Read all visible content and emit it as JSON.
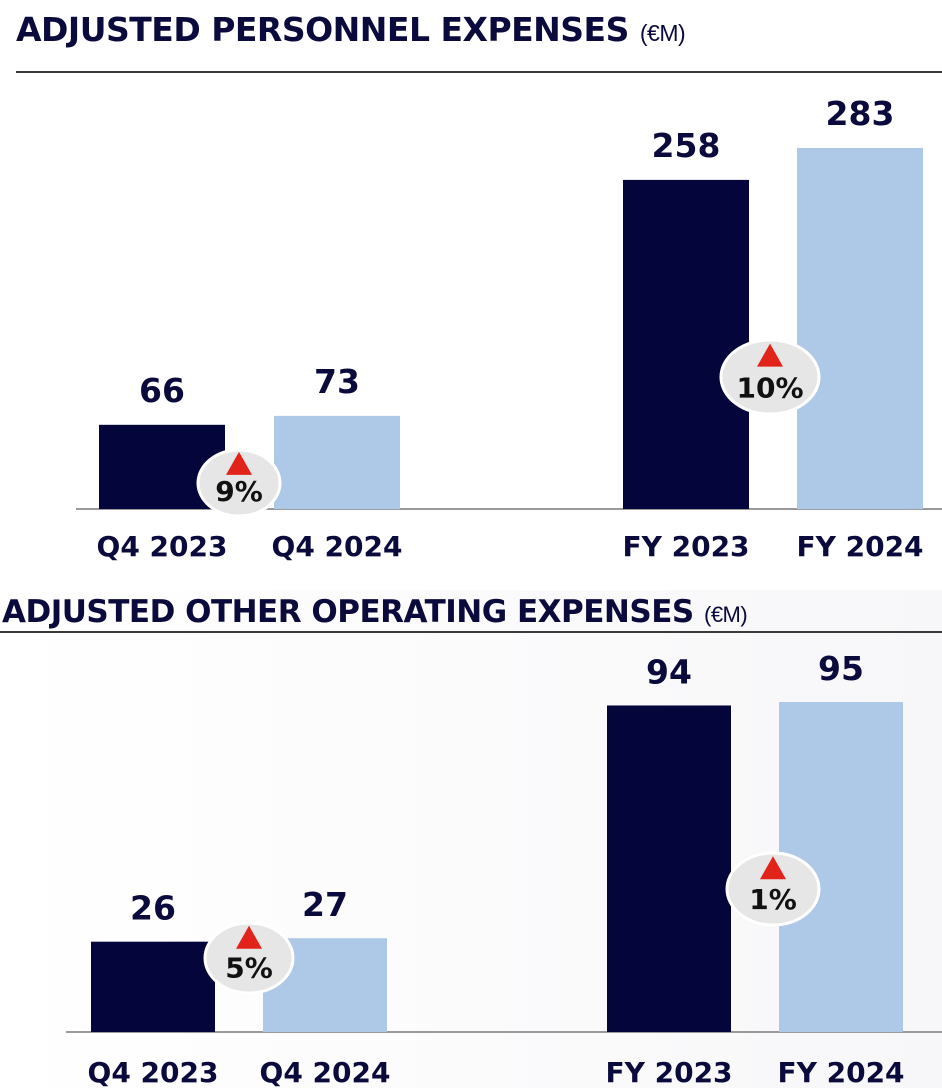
{
  "colors": {
    "fy_prev": "#03053b",
    "fy_curr": "#aec8e8",
    "axis": "#9a9a9a",
    "text": "#0a0a3c",
    "arrow": "#e2231a",
    "badge": "#e6e6e6"
  },
  "chart_data": [
    {
      "type": "bar",
      "title": "ADJUSTED PERSONNEL EXPENSES",
      "unit": "(€M)",
      "categories": [
        "Q4 2023",
        "Q4 2024",
        "FY 2023",
        "FY 2024"
      ],
      "values": [
        66,
        73,
        258,
        283
      ],
      "data_labels": [
        "66",
        "73",
        "258",
        "283"
      ],
      "changes": [
        {
          "label": "9%",
          "direction": "up",
          "from": "Q4 2023",
          "to": "Q4 2024"
        },
        {
          "label": "10%",
          "direction": "up",
          "from": "FY 2023",
          "to": "FY 2024"
        }
      ],
      "ylim": [
        0,
        283
      ]
    },
    {
      "type": "bar",
      "title": "ADJUSTED OTHER OPERATING EXPENSES",
      "unit": "(€M)",
      "categories": [
        "Q4 2023",
        "Q4 2024",
        "FY 2023",
        "FY 2024"
      ],
      "values": [
        26,
        27,
        94,
        95
      ],
      "data_labels": [
        "26",
        "27",
        "94",
        "95"
      ],
      "changes": [
        {
          "label": "5%",
          "direction": "up",
          "from": "Q4 2023",
          "to": "Q4 2024"
        },
        {
          "label": "1%",
          "direction": "up",
          "from": "FY 2023",
          "to": "FY 2024"
        }
      ],
      "ylim": [
        0,
        95
      ]
    }
  ]
}
